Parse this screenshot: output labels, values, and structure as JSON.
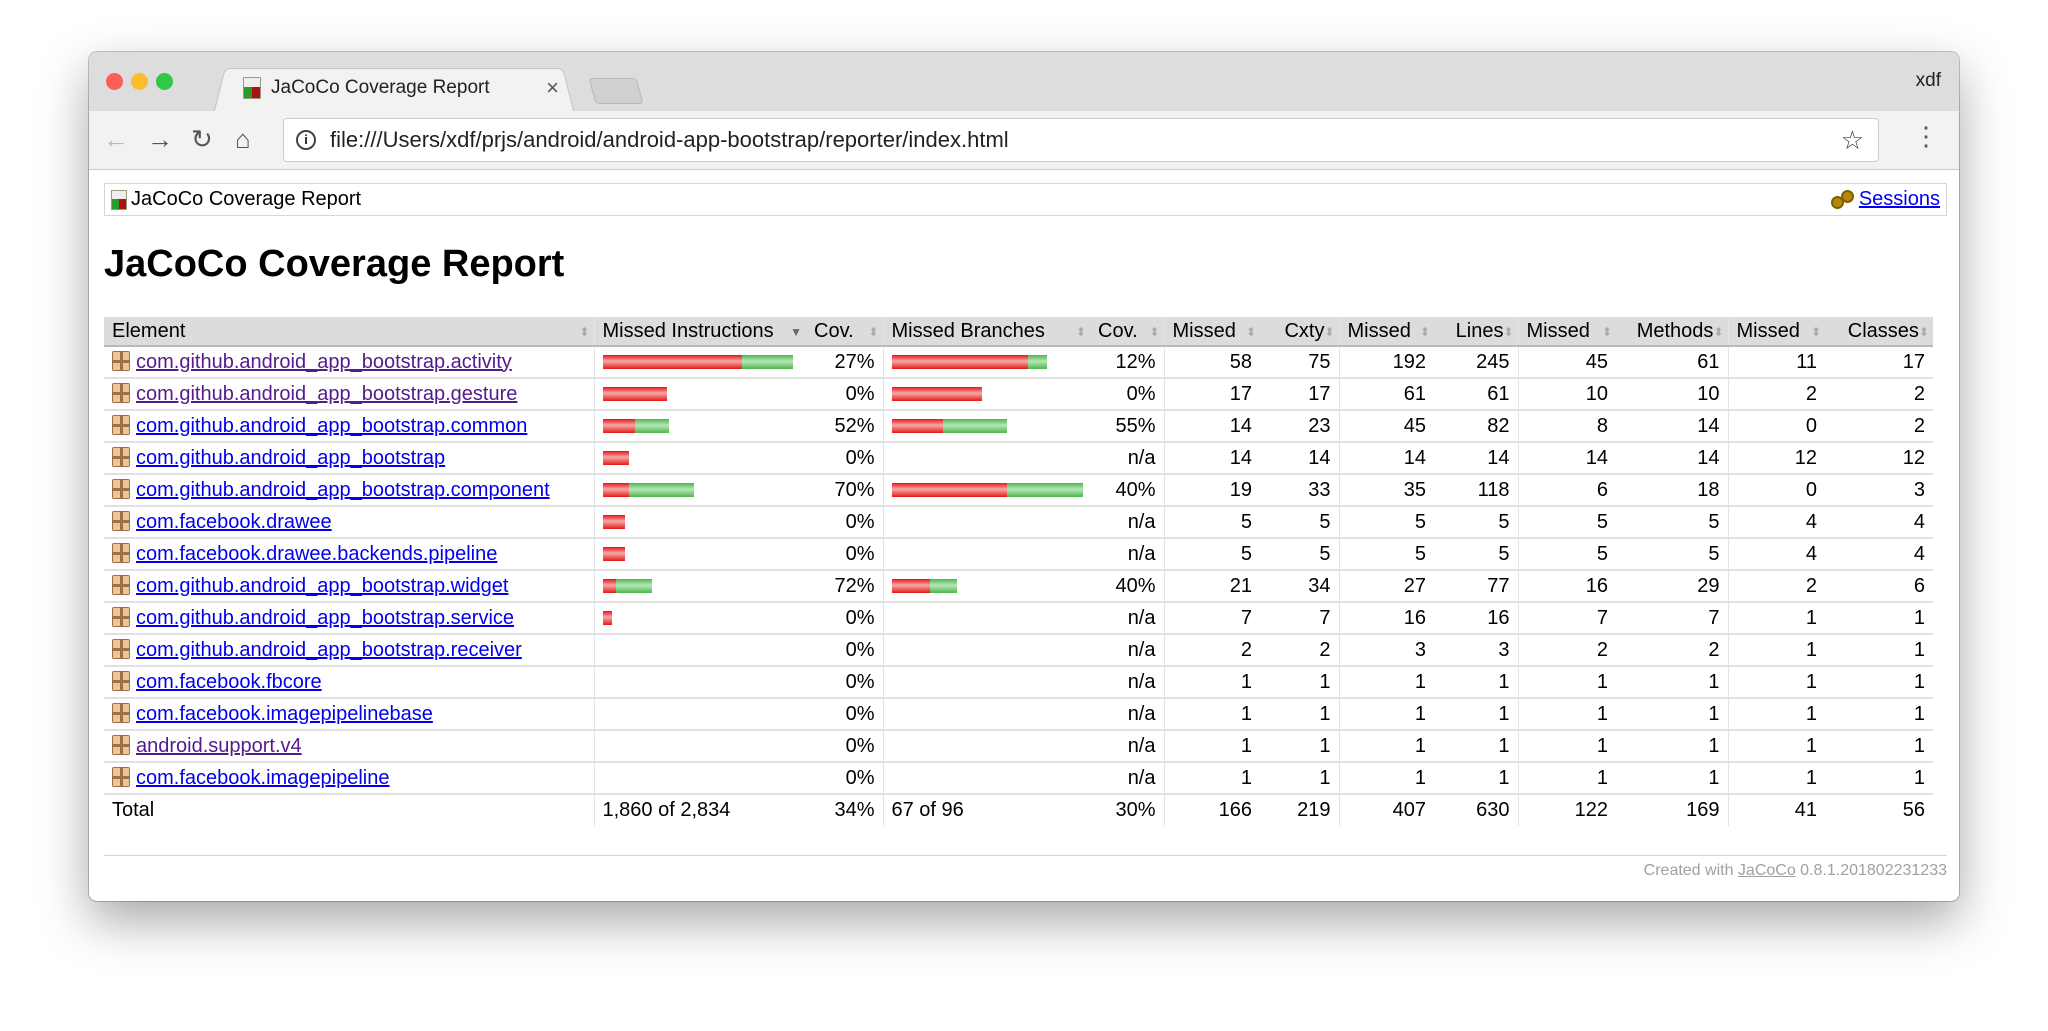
{
  "browser": {
    "tab_title": "JaCoCo Coverage Report",
    "user": "xdf",
    "url": "file:///Users/xdf/prjs/android/android-app-bootstrap/reporter/index.html"
  },
  "breadcrumb": {
    "title": "JaCoCo Coverage Report",
    "sessions": "Sessions"
  },
  "page_title": "JaCoCo Coverage Report",
  "colors": {
    "missed": "#e41818",
    "covered": "#4cb84c",
    "header_bg": "#dcdcdc"
  },
  "headers": [
    "Element",
    "Missed Instructions",
    "Cov.",
    "Missed Branches",
    "Cov.",
    "Missed",
    "Cxty",
    "Missed",
    "Lines",
    "Missed",
    "Methods",
    "Missed",
    "Classes"
  ],
  "rows": [
    {
      "name": "com.github.android_app_bootstrap.activity",
      "visited": true,
      "ibar": [
        73,
        27
      ],
      "icov": "27%",
      "bbar": [
        71,
        10
      ],
      "bcov": "12%",
      "v": [
        "58",
        "75",
        "192",
        "245",
        "45",
        "61",
        "11",
        "17"
      ]
    },
    {
      "name": "com.github.android_app_bootstrap.gesture",
      "visited": true,
      "ibar": [
        34,
        0
      ],
      "icov": "0%",
      "bbar": [
        47,
        0
      ],
      "bcov": "0%",
      "v": [
        "17",
        "17",
        "61",
        "61",
        "10",
        "10",
        "2",
        "2"
      ]
    },
    {
      "name": "com.github.android_app_bootstrap.common",
      "visited": false,
      "ibar": [
        17,
        18
      ],
      "icov": "52%",
      "bbar": [
        27,
        33
      ],
      "bcov": "55%",
      "v": [
        "14",
        "23",
        "45",
        "82",
        "8",
        "14",
        "0",
        "2"
      ]
    },
    {
      "name": "com.github.android_app_bootstrap",
      "visited": false,
      "ibar": [
        14,
        0
      ],
      "icov": "0%",
      "bbar": [
        0,
        0
      ],
      "bcov": "n/a",
      "v": [
        "14",
        "14",
        "14",
        "14",
        "14",
        "14",
        "12",
        "12"
      ]
    },
    {
      "name": "com.github.android_app_bootstrap.component",
      "visited": false,
      "ibar": [
        14,
        34
      ],
      "icov": "70%",
      "bbar": [
        60,
        40
      ],
      "bcov": "40%",
      "v": [
        "19",
        "33",
        "35",
        "118",
        "6",
        "18",
        "0",
        "3"
      ]
    },
    {
      "name": "com.facebook.drawee",
      "visited": false,
      "ibar": [
        12,
        0
      ],
      "icov": "0%",
      "bbar": [
        0,
        0
      ],
      "bcov": "n/a",
      "v": [
        "5",
        "5",
        "5",
        "5",
        "5",
        "5",
        "4",
        "4"
      ]
    },
    {
      "name": "com.facebook.drawee.backends.pipeline",
      "visited": false,
      "ibar": [
        12,
        0
      ],
      "icov": "0%",
      "bbar": [
        0,
        0
      ],
      "bcov": "n/a",
      "v": [
        "5",
        "5",
        "5",
        "5",
        "5",
        "5",
        "4",
        "4"
      ]
    },
    {
      "name": "com.github.android_app_bootstrap.widget",
      "visited": false,
      "ibar": [
        7,
        19
      ],
      "icov": "72%",
      "bbar": [
        20,
        14
      ],
      "bcov": "40%",
      "v": [
        "21",
        "34",
        "27",
        "77",
        "16",
        "29",
        "2",
        "6"
      ]
    },
    {
      "name": "com.github.android_app_bootstrap.service",
      "visited": false,
      "ibar": [
        5,
        0
      ],
      "icov": "0%",
      "bbar": [
        0,
        0
      ],
      "bcov": "n/a",
      "v": [
        "7",
        "7",
        "16",
        "16",
        "7",
        "7",
        "1",
        "1"
      ]
    },
    {
      "name": "com.github.android_app_bootstrap.receiver",
      "visited": false,
      "ibar": [
        0,
        0
      ],
      "icov": "0%",
      "bbar": [
        0,
        0
      ],
      "bcov": "n/a",
      "v": [
        "2",
        "2",
        "3",
        "3",
        "2",
        "2",
        "1",
        "1"
      ]
    },
    {
      "name": "com.facebook.fbcore",
      "visited": false,
      "ibar": [
        0,
        0
      ],
      "icov": "0%",
      "bbar": [
        0,
        0
      ],
      "bcov": "n/a",
      "v": [
        "1",
        "1",
        "1",
        "1",
        "1",
        "1",
        "1",
        "1"
      ]
    },
    {
      "name": "com.facebook.imagepipelinebase",
      "visited": false,
      "ibar": [
        0,
        0
      ],
      "icov": "0%",
      "bbar": [
        0,
        0
      ],
      "bcov": "n/a",
      "v": [
        "1",
        "1",
        "1",
        "1",
        "1",
        "1",
        "1",
        "1"
      ]
    },
    {
      "name": "android.support.v4",
      "visited": true,
      "ibar": [
        0,
        0
      ],
      "icov": "0%",
      "bbar": [
        0,
        0
      ],
      "bcov": "n/a",
      "v": [
        "1",
        "1",
        "1",
        "1",
        "1",
        "1",
        "1",
        "1"
      ]
    },
    {
      "name": "com.facebook.imagepipeline",
      "visited": false,
      "ibar": [
        0,
        0
      ],
      "icov": "0%",
      "bbar": [
        0,
        0
      ],
      "bcov": "n/a",
      "v": [
        "1",
        "1",
        "1",
        "1",
        "1",
        "1",
        "1",
        "1"
      ]
    }
  ],
  "total": {
    "label": "Total",
    "instr": "1,860 of 2,834",
    "icov": "34%",
    "branch": "67 of 96",
    "bcov": "30%",
    "v": [
      "166",
      "219",
      "407",
      "630",
      "122",
      "169",
      "41",
      "56"
    ]
  },
  "footer": {
    "prefix": "Created with ",
    "link": "JaCoCo",
    "suffix": " 0.8.1.201802231233"
  }
}
